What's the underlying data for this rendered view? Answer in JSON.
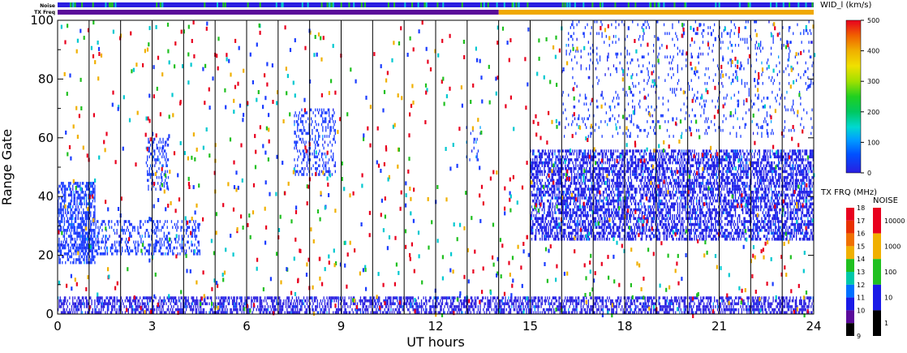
{
  "chart_data": {
    "type": "scatter",
    "xlabel": "UT hours",
    "ylabel": "Range Gate",
    "xlim": [
      0,
      24
    ],
    "ylim": [
      0,
      100
    ],
    "xticks": [
      "0",
      "3",
      "6",
      "9",
      "12",
      "15",
      "18",
      "21",
      "24"
    ],
    "yticks": [
      "0",
      "20",
      "40",
      "60",
      "80",
      "100"
    ],
    "scan_lines_hours": [
      1,
      2,
      3,
      4,
      5,
      6,
      7,
      8,
      9,
      10,
      11,
      12,
      13,
      14,
      15,
      16,
      17,
      18,
      19,
      20,
      21,
      22,
      23
    ],
    "top_bars": {
      "noise_label": "Noise",
      "txfreq_label": "TX Freq",
      "noise_color": "#2a1ee0",
      "txfreq_segments": [
        {
          "from": 0,
          "to": 14,
          "color": "#5a0a9a"
        },
        {
          "from": 14,
          "to": 24,
          "color": "#f0a800"
        }
      ]
    },
    "regions": [
      {
        "name": "low-gate band",
        "hours": [
          0,
          24
        ],
        "gates": [
          0,
          6
        ],
        "color": "#2a1ee0",
        "density": "high"
      },
      {
        "name": "early patch",
        "hours": [
          0,
          1.2
        ],
        "gates": [
          17,
          45
        ],
        "color": "#1a3cff",
        "density": "high"
      },
      {
        "name": "early descending echo",
        "hours": [
          0.5,
          4.5
        ],
        "gates": [
          20,
          32
        ],
        "color": "#1a3cff",
        "density": "medium"
      },
      {
        "name": "patch 3h",
        "hours": [
          2.8,
          3.5
        ],
        "gates": [
          42,
          60
        ],
        "color": "#1a3cff",
        "density": "medium"
      },
      {
        "name": "rising echo",
        "hours": [
          7.5,
          8.8
        ],
        "gates": [
          47,
          70
        ],
        "color": "#1a3cff",
        "density": "medium"
      },
      {
        "name": "patch 13h",
        "hours": [
          12.9,
          13.4
        ],
        "gates": [
          52,
          64
        ],
        "color": "#1a3cff",
        "density": "low"
      },
      {
        "name": "main band",
        "hours": [
          15,
          24
        ],
        "gates": [
          25,
          56
        ],
        "color": "#1a1ae6",
        "density": "high"
      },
      {
        "name": "upper gates",
        "hours": [
          16,
          24
        ],
        "gates": [
          60,
          100
        ],
        "color": "#1a3cff",
        "density": "low"
      }
    ]
  },
  "colorbar_width": {
    "title": "WID_l (km/s)",
    "ticks": [
      "500",
      "400",
      "300",
      "200",
      "100",
      "0"
    ]
  },
  "colorbar_txfreq": {
    "title": "TX FRQ (MHz)",
    "ticks": [
      "18",
      "17",
      "16",
      "15",
      "14",
      "13",
      "12",
      "11",
      "10",
      "9"
    ],
    "colors": [
      "#e8001e",
      "#e83000",
      "#f07000",
      "#f0b000",
      "#20c020",
      "#00c8a8",
      "#0070ff",
      "#1a1ae6",
      "#5a0a9a",
      "#000000"
    ]
  },
  "colorbar_noise": {
    "title": "NOISE",
    "ticks": [
      "10000",
      "1000",
      "100",
      "10",
      "1"
    ],
    "colors": [
      "#e8001e",
      "#f0b000",
      "#20c020",
      "#1a1ae6",
      "#000000"
    ]
  }
}
